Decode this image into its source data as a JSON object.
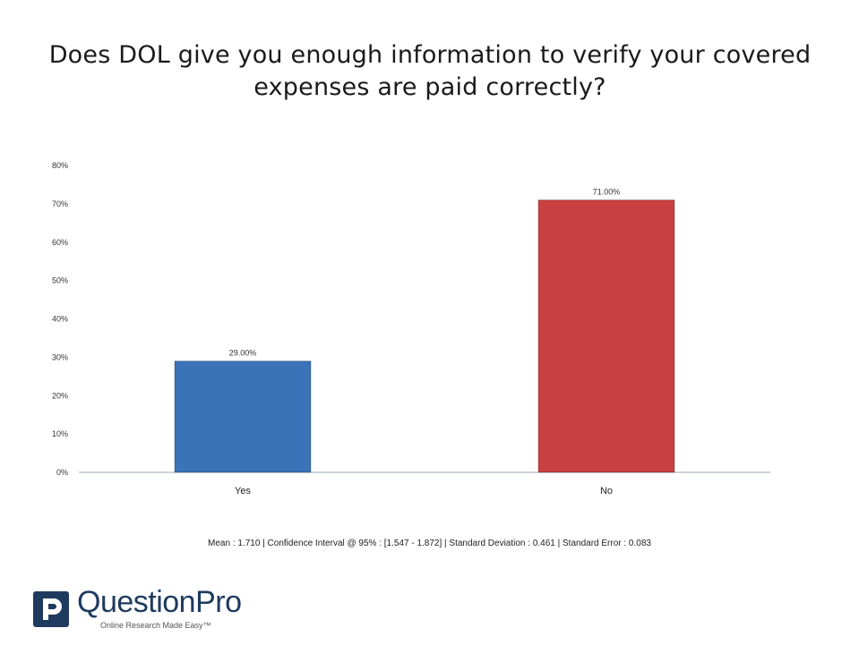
{
  "title_line1": "Does DOL give you enough information to verify your covered",
  "title_line2": "expenses are paid correctly?",
  "stats_line": "Mean : 1.710  |  Confidence Interval @ 95% : [1.547 - 1.872]  |  Standard Deviation : 0.461  |  Standard Error : 0.083",
  "logo": {
    "text": "QuestionPro",
    "tagline": "Online Research Made Easy™",
    "icon": "questionpro-logo-icon"
  },
  "colors": {
    "yes_bar": "#3a73b8",
    "no_bar": "#c84040",
    "axis": "#9aa8b8",
    "logo": "#1f3a5f"
  },
  "chart_data": {
    "type": "bar",
    "categories": [
      "Yes",
      "No"
    ],
    "values": [
      29.0,
      71.0
    ],
    "data_labels": [
      "29.00%",
      "71.00%"
    ],
    "yticks": [
      "0%",
      "10%",
      "20%",
      "30%",
      "40%",
      "50%",
      "60%",
      "70%",
      "80%"
    ],
    "ylim": [
      0,
      80
    ],
    "grid": false,
    "legend": "none"
  }
}
